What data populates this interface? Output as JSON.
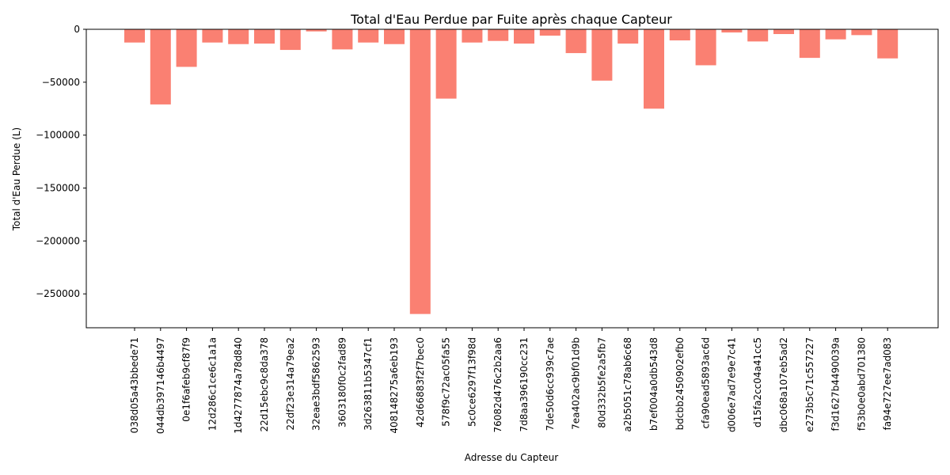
{
  "chart_data": {
    "type": "bar",
    "title": "Total d'Eau Perdue par Fuite après chaque Capteur",
    "xlabel": "Adresse du Capteur",
    "ylabel": "Total d'Eau Perdue (L)",
    "ylim": [
      -282000,
      0
    ],
    "yticks": [
      0,
      -50000,
      -100000,
      -150000,
      -200000,
      -250000
    ],
    "ytick_labels": [
      "0",
      "−50000",
      "−100000",
      "−150000",
      "−200000",
      "−250000"
    ],
    "bar_color": "#fa8072",
    "grid": false,
    "categories": [
      "038d05a43bbede71",
      "044db397146b4497",
      "0e1f6afeb9cf87f9",
      "12d286c1ce6c1a1a",
      "1d4277874a78d840",
      "22d15ebc9c8da378",
      "22df23e314a79ea2",
      "32eae3bdf5862593",
      "3603180f0c2fad89",
      "3d263811b5347cf1",
      "408148275a6eb193",
      "42d66883f2f7bec0",
      "578f9c72ac05fa55",
      "5c0ce6297f13f98d",
      "76082d476c2b2aa6",
      "7d8aa396190cc231",
      "7de50d6cc939c7ae",
      "7ea402ac9bf01d9b",
      "80d332b5fe2a5fb7",
      "a2b5051c78ab6c68",
      "b7ef004a0db543d8",
      "bdcbb2450902efb0",
      "cfa90ead5893ac6d",
      "d006e7ad7e9e7c41",
      "d15fa2cc04a41cc5",
      "dbc068a107eb5ad2",
      "e273b5c71c557227",
      "f3d1627b4490039a",
      "f53b0e0abd701380",
      "fa94e727ee7ad083"
    ],
    "values": [
      -12500,
      -71000,
      -35500,
      -12500,
      -14000,
      -13500,
      -19500,
      -2000,
      -19000,
      -12500,
      -14000,
      -269000,
      -65500,
      -12500,
      -11000,
      -13500,
      -6000,
      -22500,
      -48500,
      -13500,
      -75000,
      -10500,
      -34000,
      -3000,
      -11500,
      -4500,
      -27000,
      -9500,
      -5500,
      -27500
    ]
  }
}
